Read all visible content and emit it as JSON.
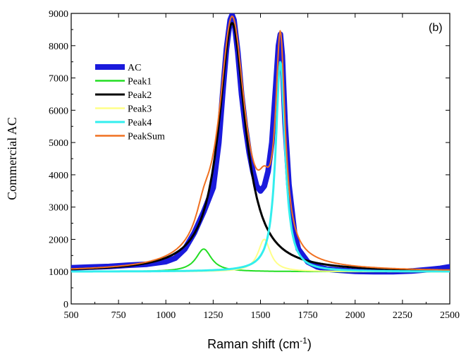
{
  "chart_data": {
    "type": "line",
    "panel_label": "(b)",
    "xlabel": "Raman shift (cm",
    "xlabel_sup": "-1",
    "xlabel_close": ")",
    "ylabel": "Commercial AC",
    "xlim": [
      500,
      2500
    ],
    "ylim": [
      0,
      9000
    ],
    "xticks": [
      "500",
      "750",
      "1000",
      "1250",
      "1500",
      "1750",
      "2000",
      "2250",
      "2500"
    ],
    "yticks": [
      "0",
      "1000",
      "2000",
      "3000",
      "4000",
      "5000",
      "6000",
      "7000",
      "8000",
      "9000"
    ],
    "legend_position": "upper-left",
    "baseline": 1000,
    "peaks": [
      {
        "name": "Peak1",
        "center": 1200,
        "height": 700,
        "hwhm": 50
      },
      {
        "name": "Peak2",
        "center": 1350,
        "height": 7700,
        "hwhm": 85
      },
      {
        "name": "Peak3",
        "center": 1520,
        "height": 1000,
        "hwhm": 40
      },
      {
        "name": "Peak4",
        "center": 1605,
        "height": 6500,
        "hwhm": 30
      }
    ],
    "series": [
      {
        "name": "AC",
        "color": "#1a1adc",
        "stroke": 8,
        "x": [
          500,
          600,
          700,
          800,
          900,
          1000,
          1050,
          1100,
          1150,
          1200,
          1250,
          1280,
          1300,
          1320,
          1340,
          1350,
          1360,
          1380,
          1400,
          1420,
          1440,
          1460,
          1480,
          1500,
          1520,
          1540,
          1560,
          1580,
          1595,
          1605,
          1615,
          1630,
          1650,
          1680,
          1700,
          1750,
          1800,
          1850,
          1900,
          2000,
          2100,
          2200,
          2300,
          2400,
          2450,
          2500
        ],
        "y": [
          1120,
          1140,
          1160,
          1200,
          1230,
          1310,
          1420,
          1700,
          2200,
          2850,
          3600,
          5000,
          6500,
          7900,
          8800,
          8950,
          8800,
          7800,
          6500,
          5500,
          4700,
          4100,
          3650,
          3500,
          3650,
          4100,
          5000,
          6700,
          8000,
          8350,
          7700,
          5600,
          3700,
          2200,
          1700,
          1300,
          1150,
          1080,
          1050,
          1010,
          1000,
          1000,
          1020,
          1070,
          1100,
          1150
        ]
      },
      {
        "name": "Peak1",
        "color": "#22dd22",
        "stroke": 2
      },
      {
        "name": "Peak2",
        "color": "#000000",
        "stroke": 3
      },
      {
        "name": "Peak3",
        "color": "#ffff88",
        "stroke": 2
      },
      {
        "name": "Peak4",
        "color": "#33eeee",
        "stroke": 3
      },
      {
        "name": "PeakSum",
        "color": "#f07020",
        "stroke": 2
      }
    ]
  }
}
